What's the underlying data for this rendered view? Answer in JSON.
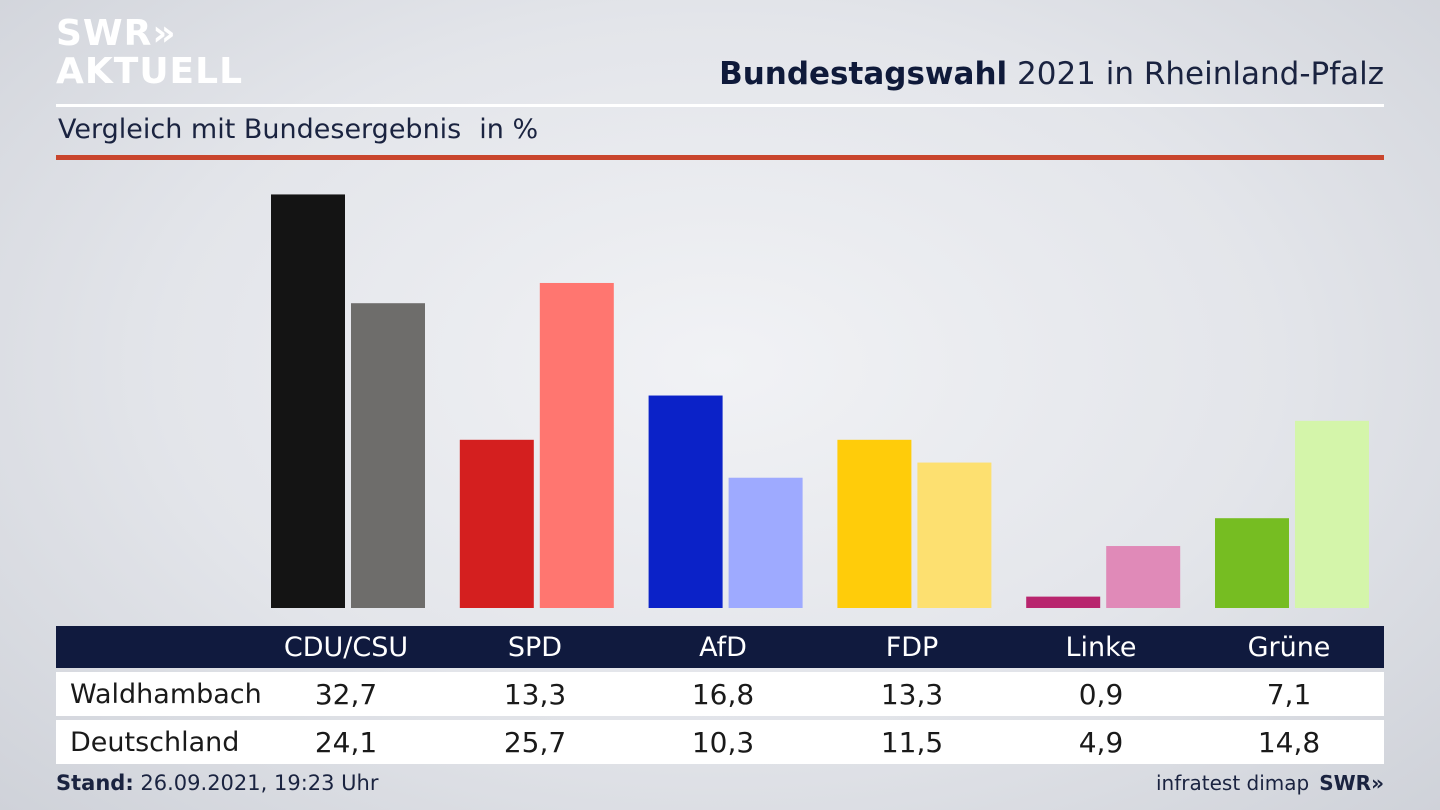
{
  "branding": {
    "logo_line1": "SWR»",
    "logo_line2": "AKTUELL"
  },
  "header": {
    "title_bold": "Bundestagswahl",
    "title_rest": " 2021 in Rheinland-Pfalz"
  },
  "subtitle": {
    "text": "Vergleich mit Bundesergebnis",
    "unit": "in %"
  },
  "chart_data": {
    "type": "bar",
    "categories": [
      "CDU/CSU",
      "SPD",
      "AfD",
      "FDP",
      "Linke",
      "Grüne"
    ],
    "series": [
      {
        "name": "Waldhambach",
        "values": [
          32.7,
          13.3,
          16.8,
          13.3,
          0.9,
          7.1
        ]
      },
      {
        "name": "Deutschland",
        "values": [
          24.1,
          25.7,
          10.3,
          11.5,
          4.9,
          14.8
        ]
      }
    ],
    "colors": {
      "Waldhambach": [
        "#141414",
        "#d41f1f",
        "#0b22c8",
        "#ffcc0a",
        "#b8256e",
        "#76bd22"
      ],
      "Deutschland": [
        "#6e6d6b",
        "#ff7670",
        "#9eaaff",
        "#fde070",
        "#e08ab8",
        "#d4f5aa"
      ]
    },
    "ylim": [
      0,
      34
    ],
    "grid": false,
    "xlabel": "",
    "ylabel": ""
  },
  "table": {
    "rows": [
      {
        "label": "Waldhambach",
        "values": [
          "32,7",
          "13,3",
          "16,8",
          "13,3",
          "0,9",
          "7,1"
        ]
      },
      {
        "label": "Deutschland",
        "values": [
          "24,1",
          "25,7",
          "10,3",
          "11,5",
          "4,9",
          "14,8"
        ]
      }
    ]
  },
  "footer": {
    "stand_label": "Stand:",
    "stand_value": " 26.09.2021, 19:23 Uhr",
    "source": "infratest dimap",
    "brand": "SWR»"
  }
}
